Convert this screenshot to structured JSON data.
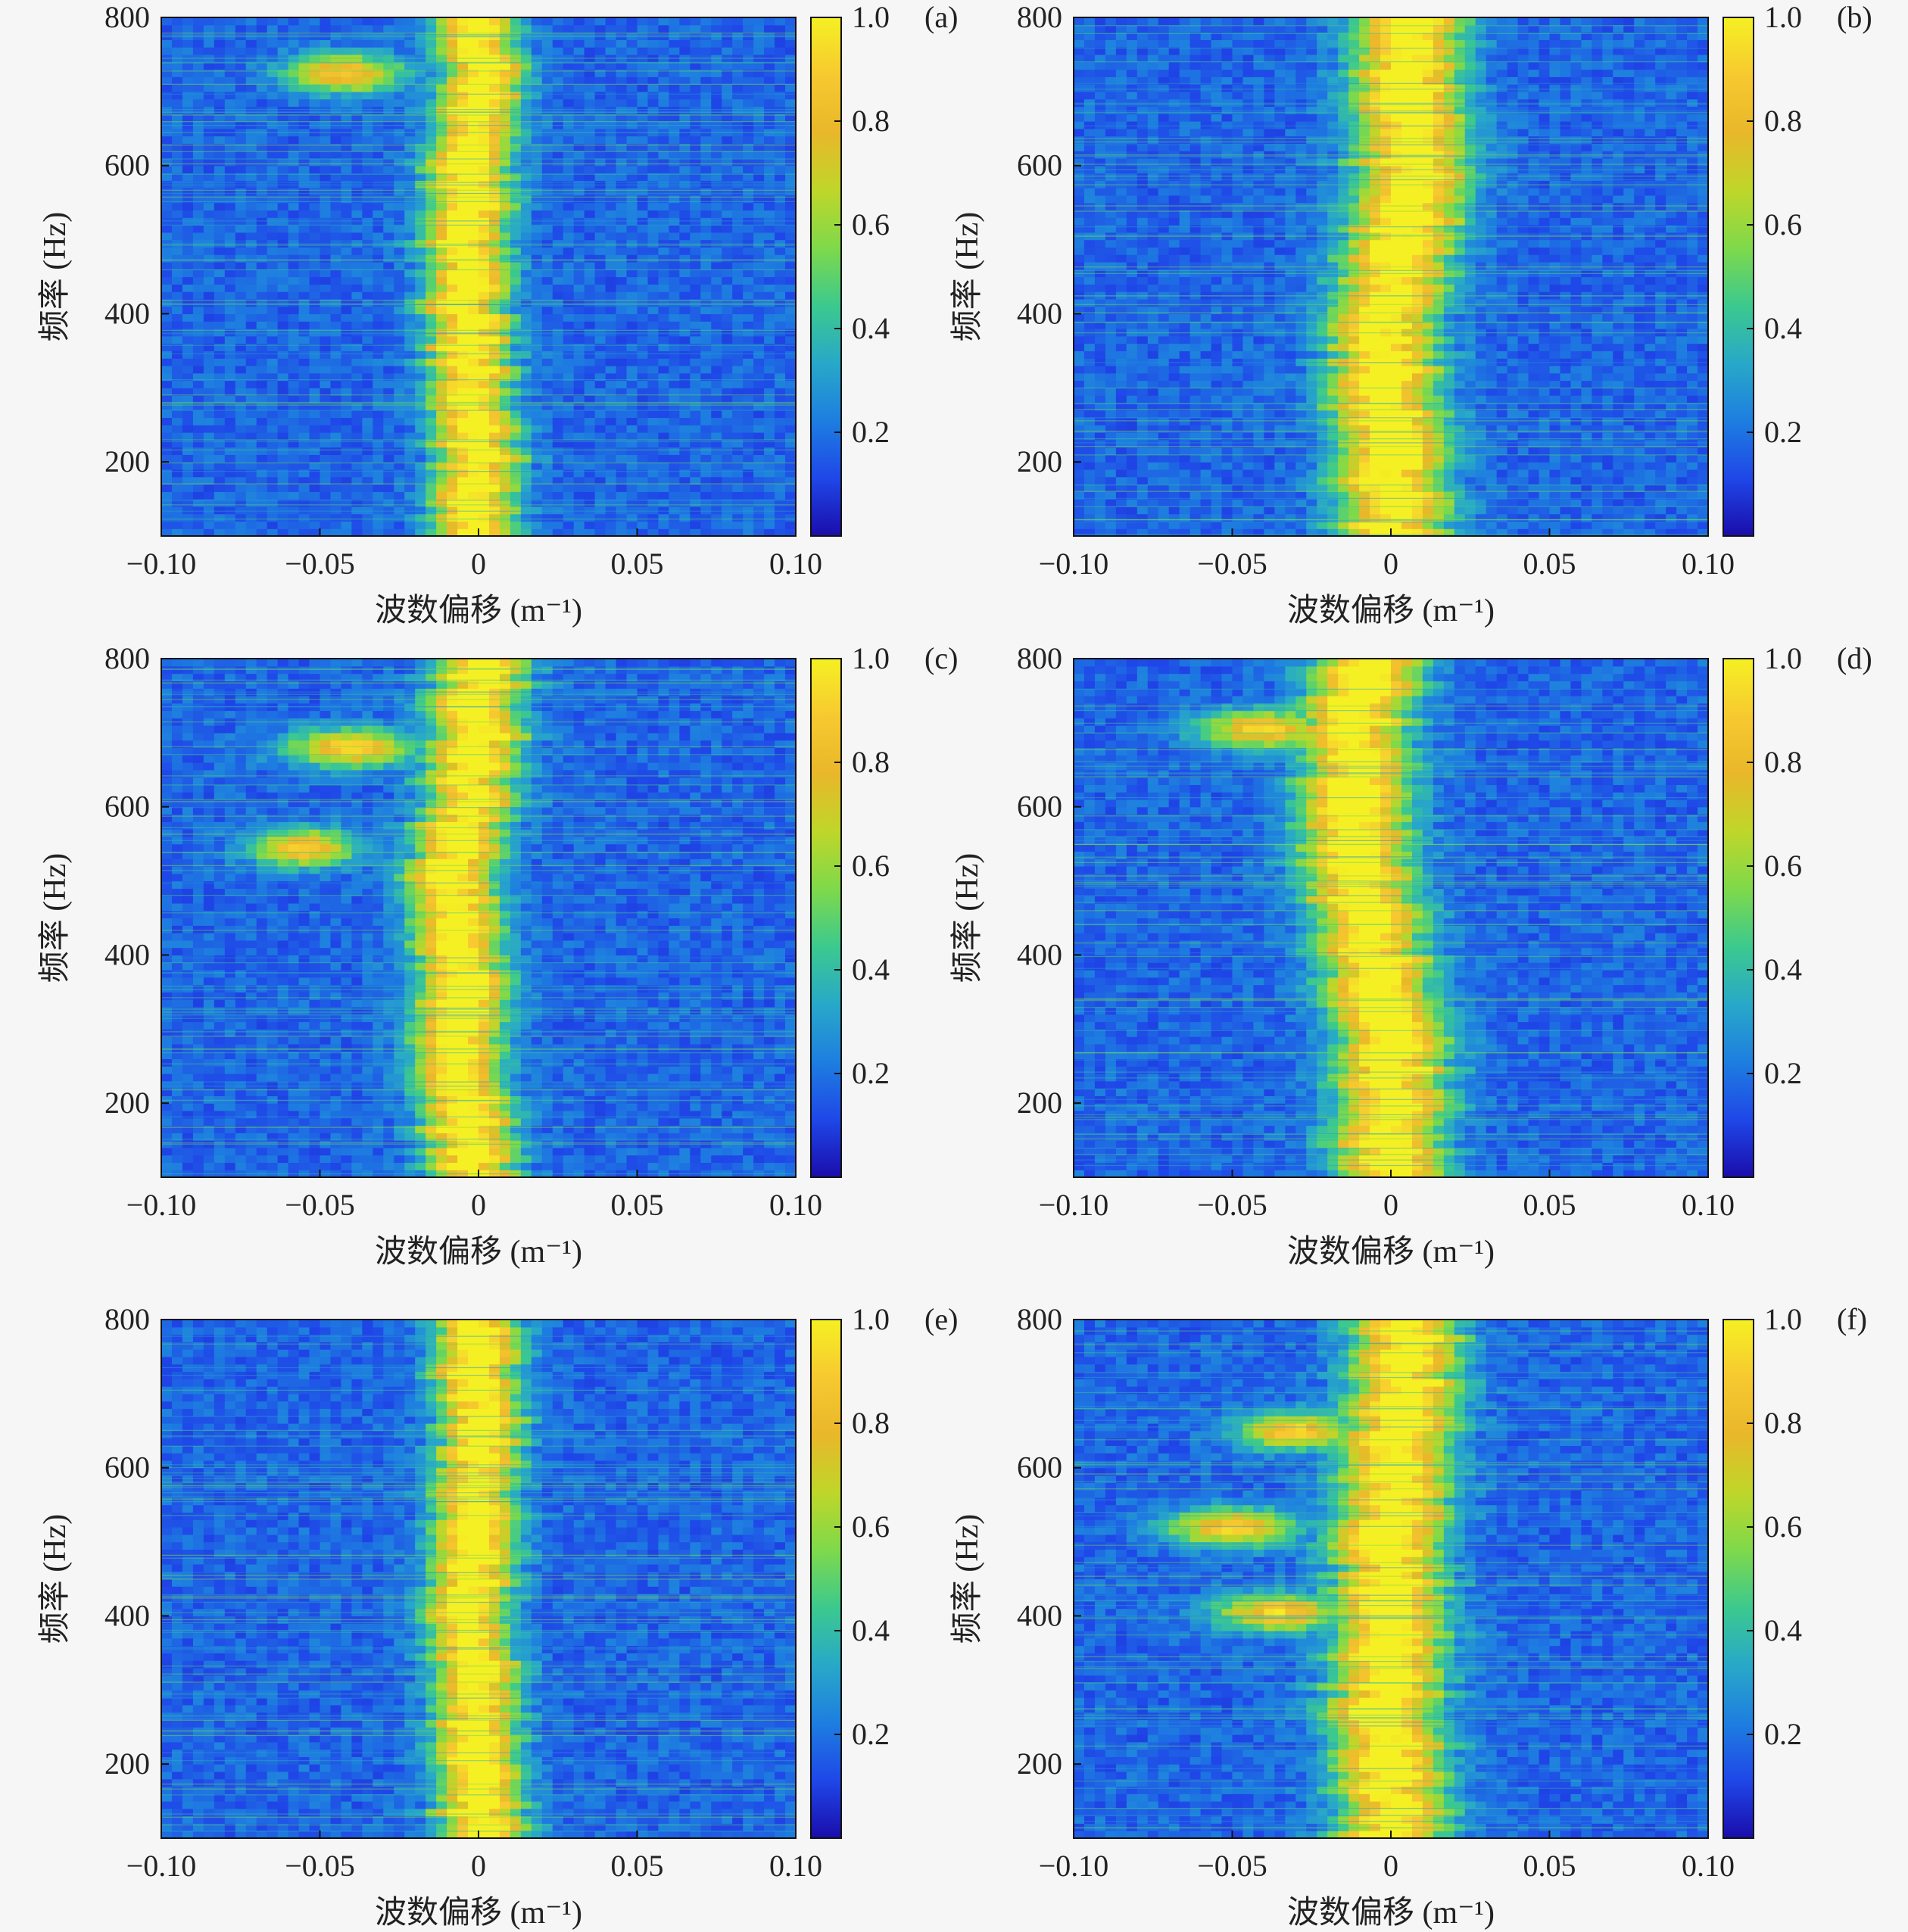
{
  "chart_data": {
    "type": "heatmap",
    "layout": "3x2 grid",
    "panels": [
      {
        "label": "(a)",
        "xlabel": "波数偏移 (m⁻¹)",
        "ylabel": "频率 (Hz)",
        "xlim": [
          -0.1,
          0.1
        ],
        "ylim": [
          100,
          800
        ],
        "xticks": [
          -0.1,
          -0.05,
          0,
          0.05,
          0.1
        ],
        "xtick_labels": [
          "−0.10",
          "−0.05",
          "0",
          "0.05",
          "0.10"
        ],
        "yticks": [
          200,
          400,
          600,
          800
        ],
        "ytick_labels": [
          "200",
          "400",
          "600",
          "800"
        ],
        "ridge": [
          [
            100,
            -0.002
          ],
          [
            200,
            0.0
          ],
          [
            300,
            -0.002
          ],
          [
            400,
            -0.004
          ],
          [
            500,
            -0.004
          ],
          [
            600,
            -0.002
          ],
          [
            700,
            0.0
          ],
          [
            800,
            0.0
          ]
        ],
        "ridge_width": 0.012,
        "side_lobes": [
          {
            "freq": 725,
            "k": -0.042,
            "spread": 0.018
          }
        ],
        "colorbar": {
          "min": 0.0,
          "max": 1.0,
          "ticks": [
            0.2,
            0.4,
            0.6,
            0.8,
            1.0
          ],
          "tick_labels": [
            "0.2",
            "0.4",
            "0.6",
            "0.8",
            "1.0"
          ]
        }
      },
      {
        "label": "(b)",
        "xlabel": "波数偏移 (m⁻¹)",
        "ylabel": "频率 (Hz)",
        "xlim": [
          -0.1,
          0.1
        ],
        "ylim": [
          100,
          800
        ],
        "xticks": [
          -0.1,
          -0.05,
          0,
          0.05,
          0.1
        ],
        "xtick_labels": [
          "−0.10",
          "−0.05",
          "0",
          "0.05",
          "0.10"
        ],
        "yticks": [
          200,
          400,
          600,
          800
        ],
        "ytick_labels": [
          "200",
          "400",
          "600",
          "800"
        ],
        "ridge": [
          [
            100,
            0.0
          ],
          [
            200,
            0.0
          ],
          [
            300,
            -0.002
          ],
          [
            400,
            -0.002
          ],
          [
            500,
            0.004
          ],
          [
            600,
            0.006
          ],
          [
            700,
            0.006
          ],
          [
            800,
            0.006
          ]
        ],
        "ridge_width": 0.016,
        "side_lobes": [],
        "colorbar": {
          "min": 0.0,
          "max": 1.0,
          "ticks": [
            0.2,
            0.4,
            0.6,
            0.8,
            1.0
          ],
          "tick_labels": [
            "0.2",
            "0.4",
            "0.6",
            "0.8",
            "1.0"
          ]
        }
      },
      {
        "label": "(c)",
        "xlabel": "波数偏移 (m⁻¹)",
        "ylabel": "频率 (Hz)",
        "xlim": [
          -0.1,
          0.1
        ],
        "ylim": [
          100,
          800
        ],
        "xticks": [
          -0.1,
          -0.05,
          0,
          0.05,
          0.1
        ],
        "xtick_labels": [
          "−0.10",
          "−0.05",
          "0",
          "0.05",
          "0.10"
        ],
        "yticks": [
          200,
          400,
          600,
          800
        ],
        "ytick_labels": [
          "200",
          "400",
          "600",
          "800"
        ],
        "ridge": [
          [
            100,
            -0.002
          ],
          [
            200,
            -0.004
          ],
          [
            300,
            -0.006
          ],
          [
            400,
            -0.006
          ],
          [
            500,
            -0.01
          ],
          [
            600,
            -0.004
          ],
          [
            700,
            0.0
          ],
          [
            800,
            0.0
          ]
        ],
        "ridge_width": 0.013,
        "side_lobes": [
          {
            "freq": 545,
            "k": -0.055,
            "spread": 0.016
          },
          {
            "freq": 680,
            "k": -0.04,
            "spread": 0.02
          }
        ],
        "colorbar": {
          "min": 0.0,
          "max": 1.0,
          "ticks": [
            0.2,
            0.4,
            0.6,
            0.8,
            1.0
          ],
          "tick_labels": [
            "0.2",
            "0.4",
            "0.6",
            "0.8",
            "1.0"
          ]
        }
      },
      {
        "label": "(d)",
        "xlabel": "波数偏移 (m⁻¹)",
        "ylabel": "频率 (Hz)",
        "xlim": [
          -0.1,
          0.1
        ],
        "ylim": [
          100,
          800
        ],
        "xticks": [
          -0.1,
          -0.05,
          0,
          0.05,
          0.1
        ],
        "xtick_labels": [
          "−0.10",
          "−0.05",
          "0",
          "0.05",
          "0.10"
        ],
        "yticks": [
          200,
          400,
          600,
          800
        ],
        "ytick_labels": [
          "200",
          "400",
          "600",
          "800"
        ],
        "ridge": [
          [
            100,
            0.0
          ],
          [
            200,
            0.0
          ],
          [
            300,
            0.0
          ],
          [
            400,
            -0.006
          ],
          [
            500,
            -0.01
          ],
          [
            600,
            -0.01
          ],
          [
            700,
            -0.012
          ],
          [
            800,
            -0.008
          ]
        ],
        "ridge_width": 0.016,
        "side_lobes": [
          {
            "freq": 705,
            "k": -0.04,
            "spread": 0.02
          }
        ],
        "colorbar": {
          "min": 0.0,
          "max": 1.0,
          "ticks": [
            0.2,
            0.4,
            0.6,
            0.8,
            1.0
          ],
          "tick_labels": [
            "0.2",
            "0.4",
            "0.6",
            "0.8",
            "1.0"
          ]
        }
      },
      {
        "label": "(e)",
        "xlabel": "波数偏移 (m⁻¹)",
        "ylabel": "频率 (Hz)",
        "xlim": [
          -0.1,
          0.1
        ],
        "ylim": [
          100,
          800
        ],
        "xticks": [
          -0.1,
          -0.05,
          0,
          0.05,
          0.1
        ],
        "xtick_labels": [
          "−0.10",
          "−0.05",
          "0",
          "0.05",
          "0.10"
        ],
        "yticks": [
          200,
          400,
          600,
          800
        ],
        "ytick_labels": [
          "200",
          "400",
          "600",
          "800"
        ],
        "ridge": [
          [
            100,
            0.0
          ],
          [
            200,
            0.0
          ],
          [
            300,
            0.0
          ],
          [
            400,
            -0.002
          ],
          [
            500,
            -0.002
          ],
          [
            600,
            0.0
          ],
          [
            700,
            0.0
          ],
          [
            800,
            0.0
          ]
        ],
        "ridge_width": 0.012,
        "side_lobes": [],
        "colorbar": {
          "min": 0.0,
          "max": 1.0,
          "ticks": [
            0.2,
            0.4,
            0.6,
            0.8,
            1.0
          ],
          "tick_labels": [
            "0.2",
            "0.4",
            "0.6",
            "0.8",
            "1.0"
          ]
        }
      },
      {
        "label": "(f)",
        "xlabel": "波数偏移 (m⁻¹)",
        "ylabel": "频率 (Hz)",
        "xlim": [
          -0.1,
          0.1
        ],
        "ylim": [
          100,
          800
        ],
        "xticks": [
          -0.1,
          -0.05,
          0,
          0.05,
          0.1
        ],
        "xtick_labels": [
          "−0.10",
          "−0.05",
          "0",
          "0.05",
          "0.10"
        ],
        "yticks": [
          200,
          400,
          600,
          800
        ],
        "ytick_labels": [
          "200",
          "400",
          "600",
          "800"
        ],
        "ridge": [
          [
            100,
            0.0
          ],
          [
            200,
            0.0
          ],
          [
            300,
            -0.002
          ],
          [
            400,
            0.0
          ],
          [
            500,
            0.0
          ],
          [
            600,
            0.002
          ],
          [
            700,
            0.004
          ],
          [
            800,
            0.004
          ]
        ],
        "ridge_width": 0.016,
        "side_lobes": [
          {
            "freq": 520,
            "k": -0.05,
            "spread": 0.02
          },
          {
            "freq": 405,
            "k": -0.035,
            "spread": 0.02
          },
          {
            "freq": 650,
            "k": -0.03,
            "spread": 0.018
          }
        ],
        "colorbar": {
          "min": 0.0,
          "max": 1.0,
          "ticks": [
            0.2,
            0.4,
            0.6,
            0.8,
            1.0
          ],
          "tick_labels": [
            "0.2",
            "0.4",
            "0.6",
            "0.8",
            "1.0"
          ]
        }
      }
    ],
    "colormap": [
      "#1a0dab",
      "#1f47e8",
      "#1e7ee0",
      "#28a8c8",
      "#3cc98e",
      "#7fd94a",
      "#bfd62a",
      "#e9b72a",
      "#f7c930",
      "#f5f023"
    ]
  }
}
